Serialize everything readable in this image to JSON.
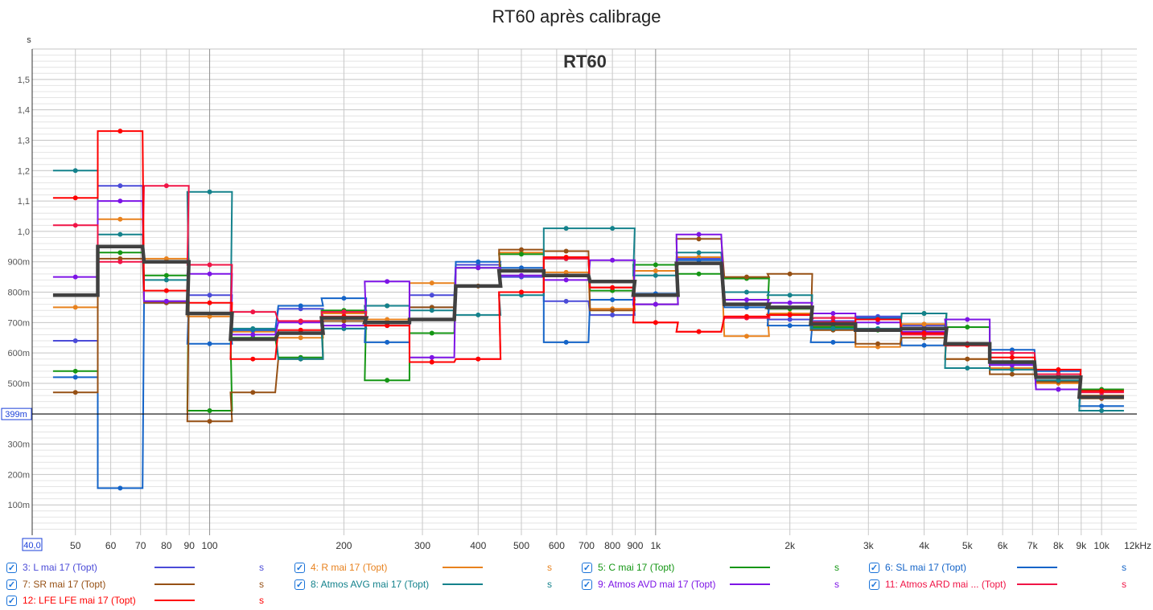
{
  "chart_data": {
    "type": "line",
    "title": "RT60 après calibrage",
    "inner_title": "RT60",
    "ylabel": "s",
    "xlabel": "Hz",
    "x_scale": "log",
    "xlim": [
      40,
      12000
    ],
    "ylim": [
      0,
      1.6
    ],
    "cursor": {
      "value_label": "399m",
      "value": 0.399,
      "x_label": "40,0"
    },
    "x_ticks": [
      {
        "v": 50,
        "l": "50"
      },
      {
        "v": 60,
        "l": "60"
      },
      {
        "v": 70,
        "l": "70"
      },
      {
        "v": 80,
        "l": "80"
      },
      {
        "v": 90,
        "l": "90"
      },
      {
        "v": 100,
        "l": "100"
      },
      {
        "v": 200,
        "l": "200"
      },
      {
        "v": 300,
        "l": "300"
      },
      {
        "v": 400,
        "l": "400"
      },
      {
        "v": 500,
        "l": "500"
      },
      {
        "v": 600,
        "l": "600"
      },
      {
        "v": 700,
        "l": "700"
      },
      {
        "v": 800,
        "l": "800"
      },
      {
        "v": 900,
        "l": "900"
      },
      {
        "v": 1000,
        "l": "1k"
      },
      {
        "v": 2000,
        "l": "2k"
      },
      {
        "v": 3000,
        "l": "3k"
      },
      {
        "v": 4000,
        "l": "4k"
      },
      {
        "v": 5000,
        "l": "5k"
      },
      {
        "v": 6000,
        "l": "6k"
      },
      {
        "v": 7000,
        "l": "7k"
      },
      {
        "v": 8000,
        "l": "8k"
      },
      {
        "v": 9000,
        "l": "9k"
      },
      {
        "v": 10000,
        "l": "10k"
      },
      {
        "v": 12000,
        "l": "12kHz"
      }
    ],
    "y_ticks": [
      {
        "v": 0.1,
        "l": "100m"
      },
      {
        "v": 0.2,
        "l": "200m"
      },
      {
        "v": 0.3,
        "l": "300m"
      },
      {
        "v": 0.5,
        "l": "500m"
      },
      {
        "v": 0.6,
        "l": "600m"
      },
      {
        "v": 0.7,
        "l": "700m"
      },
      {
        "v": 0.8,
        "l": "800m"
      },
      {
        "v": 0.9,
        "l": "900m"
      },
      {
        "v": 1.0,
        "l": "1,0"
      },
      {
        "v": 1.1,
        "l": "1,1"
      },
      {
        "v": 1.2,
        "l": "1,2"
      },
      {
        "v": 1.3,
        "l": "1,3"
      },
      {
        "v": 1.4,
        "l": "1,4"
      },
      {
        "v": 1.5,
        "l": "1,5"
      }
    ],
    "x": [
      50,
      63,
      80,
      100,
      125,
      160,
      200,
      250,
      315,
      400,
      500,
      630,
      800,
      1000,
      1250,
      1600,
      2000,
      2500,
      3150,
      4000,
      5000,
      6300,
      8000,
      10000
    ],
    "series": [
      {
        "name": "3: L mai 17 (Topt)",
        "unit": "s",
        "color": "#4b4bd8",
        "values": [
          0.64,
          1.15,
          0.77,
          0.79,
          0.675,
          0.745,
          0.68,
          0.7,
          0.79,
          0.89,
          0.85,
          0.77,
          0.725,
          0.76,
          0.91,
          0.76,
          0.71,
          0.705,
          0.72,
          0.69,
          0.625,
          0.565,
          0.48,
          0.46
        ]
      },
      {
        "name": "4: R mai 17 (Topt)",
        "unit": "s",
        "color": "#e8821e",
        "values": [
          0.75,
          1.04,
          0.91,
          0.72,
          0.67,
          0.65,
          0.73,
          0.71,
          0.83,
          0.82,
          0.93,
          0.865,
          0.745,
          0.87,
          0.915,
          0.655,
          0.73,
          0.69,
          0.62,
          0.695,
          0.58,
          0.55,
          0.5,
          0.46
        ]
      },
      {
        "name": "5: C mai 17 (Topt)",
        "unit": "s",
        "color": "#149614",
        "values": [
          0.54,
          0.93,
          0.855,
          0.41,
          0.65,
          0.585,
          0.74,
          0.51,
          0.665,
          0.88,
          0.925,
          0.91,
          0.805,
          0.89,
          0.86,
          0.845,
          0.745,
          0.685,
          0.675,
          0.73,
          0.685,
          0.57,
          0.52,
          0.48
        ]
      },
      {
        "name": "6: SL mai 17 (Topt)",
        "unit": "s",
        "color": "#1464c8",
        "values": [
          0.52,
          0.155,
          0.765,
          0.63,
          0.675,
          0.755,
          0.78,
          0.635,
          0.75,
          0.9,
          0.88,
          0.635,
          0.775,
          0.795,
          0.905,
          0.75,
          0.69,
          0.635,
          0.715,
          0.625,
          0.63,
          0.61,
          0.54,
          0.425
        ]
      },
      {
        "name": "7: SR mai 17 (Topt)",
        "unit": "s",
        "color": "#965014",
        "values": [
          0.47,
          0.91,
          0.765,
          0.375,
          0.47,
          0.58,
          0.705,
          0.755,
          0.75,
          0.82,
          0.94,
          0.935,
          0.74,
          0.76,
          0.975,
          0.85,
          0.86,
          0.675,
          0.63,
          0.65,
          0.58,
          0.53,
          0.505,
          0.45
        ]
      },
      {
        "name": "8: Atmos AVG mai 17 (Topt)",
        "unit": "s",
        "color": "#14828c",
        "values": [
          1.2,
          0.99,
          0.84,
          1.13,
          0.68,
          0.58,
          0.68,
          0.755,
          0.74,
          0.725,
          0.79,
          1.01,
          1.01,
          0.855,
          0.93,
          0.8,
          0.79,
          0.68,
          0.68,
          0.73,
          0.55,
          0.545,
          0.51,
          0.41
        ]
      },
      {
        "name": "9: Atmos AVD mai 17 (Topt)",
        "unit": "s",
        "color": "#7d14e6",
        "values": [
          0.85,
          1.1,
          0.77,
          0.86,
          0.66,
          0.7,
          0.69,
          0.835,
          0.585,
          0.88,
          0.855,
          0.84,
          0.905,
          0.76,
          0.99,
          0.775,
          0.765,
          0.73,
          0.7,
          0.67,
          0.71,
          0.56,
          0.48,
          0.455
        ]
      },
      {
        "name": "11: Atmos ARD mai ... (Topt)",
        "unit": "s",
        "color": "#f01446",
        "values": [
          1.02,
          0.9,
          1.15,
          0.89,
          0.735,
          0.705,
          0.735,
          0.69,
          0.57,
          0.58,
          0.8,
          0.91,
          0.815,
          0.7,
          0.67,
          0.715,
          0.725,
          0.715,
          0.71,
          0.66,
          0.63,
          0.6,
          0.53,
          0.47
        ]
      },
      {
        "name": "12: LFE LFE mai 17 (Topt)",
        "unit": "s",
        "color": "#ff0000",
        "values": [
          1.11,
          1.33,
          0.805,
          0.765,
          0.58,
          0.675,
          0.72,
          0.69,
          0.57,
          0.58,
          0.8,
          0.915,
          0.815,
          0.7,
          0.67,
          0.72,
          0.725,
          0.7,
          0.71,
          0.665,
          0.625,
          0.585,
          0.545,
          0.475
        ]
      }
    ],
    "average": {
      "color": "#404040",
      "values": [
        0.79,
        0.95,
        0.9,
        0.73,
        0.645,
        0.665,
        0.715,
        0.7,
        0.71,
        0.82,
        0.87,
        0.855,
        0.835,
        0.79,
        0.895,
        0.76,
        0.75,
        0.695,
        0.675,
        0.68,
        0.63,
        0.57,
        0.52,
        0.455
      ]
    }
  },
  "legend_order": [
    0,
    1,
    2,
    3,
    4,
    5,
    6,
    7,
    8
  ]
}
